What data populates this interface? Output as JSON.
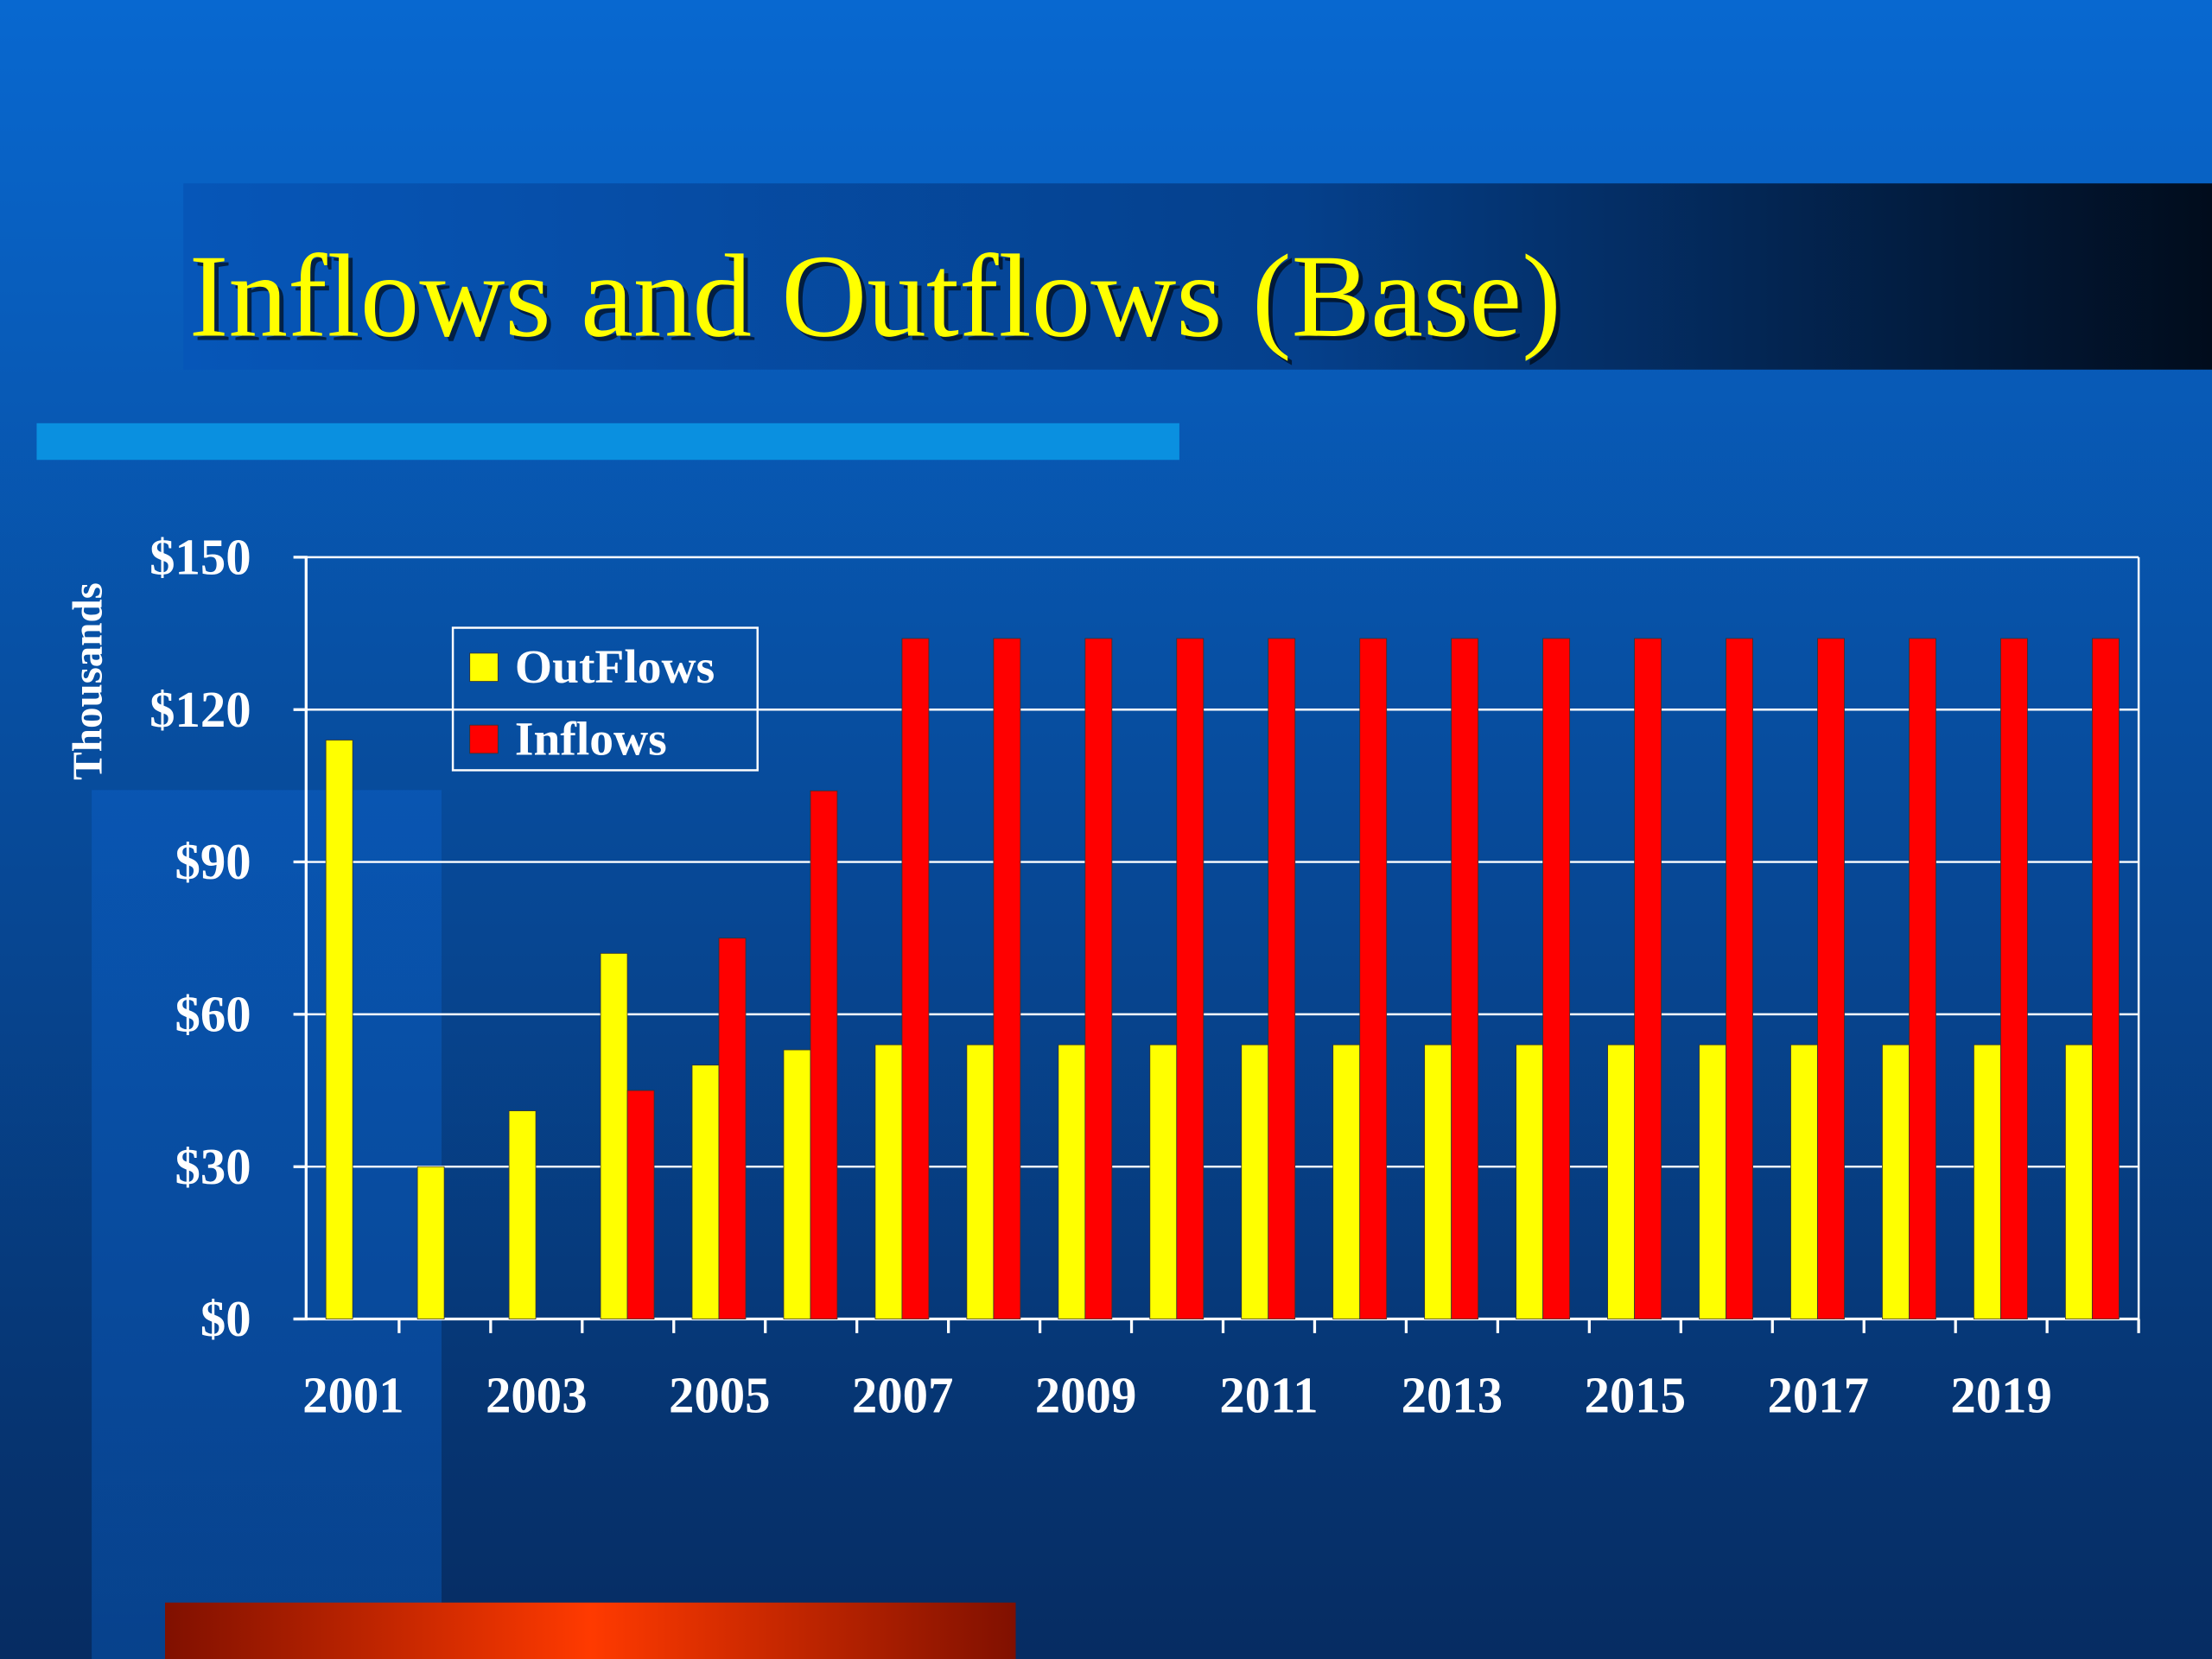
{
  "chart_data": {
    "type": "bar",
    "title": "Inflows and Outflows (Base)",
    "y_axis_label": "Thousands",
    "categories": [
      "2001",
      null,
      "2003",
      null,
      "2005",
      null,
      "2007",
      null,
      "2009",
      null,
      "2011",
      null,
      "2013",
      null,
      "2015",
      null,
      "2017",
      null,
      "2019",
      null
    ],
    "series": [
      {
        "name": "OutFlows",
        "color": "#ffff00",
        "values": [
          114,
          30,
          41,
          72,
          50,
          53,
          54,
          54,
          54,
          54,
          54,
          54,
          54,
          54,
          54,
          54,
          54,
          54,
          54,
          54
        ]
      },
      {
        "name": "Inflows",
        "color": "#ff0000",
        "values": [
          0,
          0,
          0,
          45,
          75,
          104,
          134,
          134,
          134,
          134,
          134,
          134,
          134,
          134,
          134,
          134,
          134,
          134,
          134,
          134
        ]
      }
    ],
    "ylim": [
      0,
      150
    ],
    "yticks": [
      {
        "value": 0,
        "label": "$0"
      },
      {
        "value": 30,
        "label": "$30"
      },
      {
        "value": 60,
        "label": "$60"
      },
      {
        "value": 90,
        "label": "$90"
      },
      {
        "value": 120,
        "label": "$120"
      },
      {
        "value": 150,
        "label": "$150"
      }
    ],
    "grid": true,
    "legend": "upper left"
  }
}
